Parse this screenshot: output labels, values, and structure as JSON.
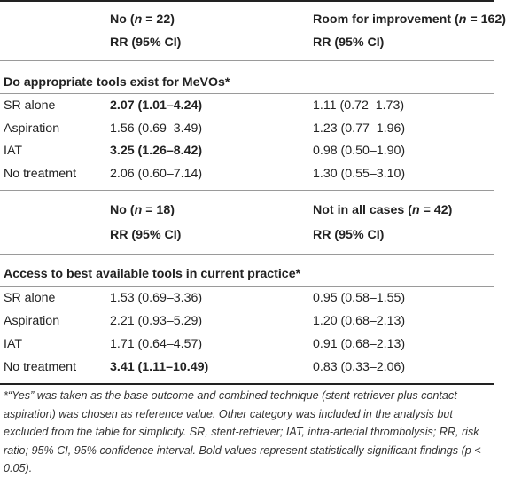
{
  "sections": [
    {
      "header": {
        "col1_line1_pre": "No (",
        "col1_n": "n",
        "col1_line1_post": " = 22)",
        "col1_line2": "RR (95% CI)",
        "col2_line1_pre": "Room for improvement (",
        "col2_n": "n",
        "col2_line1_post": " = 162)",
        "col2_line2": "RR (95% CI)"
      },
      "title": "Do appropriate tools exist for MeVOs*",
      "rows": [
        {
          "label": "SR alone",
          "v1": "2.07 (1.01–4.24)",
          "v1_bold": true,
          "v2": "1.11 (0.72–1.73)"
        },
        {
          "label": "Aspiration",
          "v1": "1.56 (0.69–3.49)",
          "v1_bold": false,
          "v2": "1.23 (0.77–1.96)"
        },
        {
          "label": "IAT",
          "v1": "3.25 (1.26–8.42)",
          "v1_bold": true,
          "v2": "0.98 (0.50–1.90)"
        },
        {
          "label": "No treatment",
          "v1": "2.06 (0.60–7.14)",
          "v1_bold": false,
          "v2": "1.30 (0.55–3.10)"
        }
      ]
    },
    {
      "header": {
        "col1_line1_pre": "No (",
        "col1_n": "n",
        "col1_line1_post": " = 18)",
        "col1_line2": "RR (95% CI)",
        "col2_line1_pre": "Not in all cases (",
        "col2_n": "n",
        "col2_line1_post": " = 42)",
        "col2_line2": "RR (95% CI)"
      },
      "title": "Access to best available tools in current practice*",
      "rows": [
        {
          "label": "SR alone",
          "v1": "1.53 (0.69–3.36)",
          "v1_bold": false,
          "v2": "0.95 (0.58–1.55)"
        },
        {
          "label": "Aspiration",
          "v1": "2.21 (0.93–5.29)",
          "v1_bold": false,
          "v2": "1.20 (0.68–2.13)"
        },
        {
          "label": "IAT",
          "v1": "1.71 (0.64–4.57)",
          "v1_bold": false,
          "v2": "0.91 (0.68–2.13)"
        },
        {
          "label": "No treatment",
          "v1": "3.41 (1.11–10.49)",
          "v1_bold": true,
          "v2": "0.83 (0.33–2.06)"
        }
      ]
    }
  ],
  "footnote": "*“Yes” was taken as the base outcome and combined technique (stent-retriever plus contact aspiration) was chosen as reference value. Other category was included in the analysis but excluded from the table for simplicity. SR, stent-retriever; IAT, intra-arterial thrombolysis; RR, risk ratio; 95% CI, 95% confidence interval. Bold values represent statistically significant findings (p < 0.05)."
}
